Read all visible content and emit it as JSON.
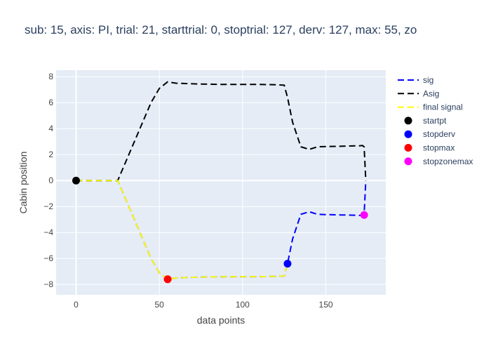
{
  "chart_data": {
    "type": "line",
    "title": "sub: 15, axis: PI, trial: 21, starttrial: 0, stoptrial: 127, derv: 127, max: 55, zo",
    "xlabel": "data points",
    "ylabel": "Cabin position",
    "xlim": [
      -12,
      186
    ],
    "ylim": [
      -8.8,
      8.5
    ],
    "xticks": [
      0,
      50,
      100,
      150
    ],
    "yticks": [
      -8,
      -6,
      -4,
      -2,
      0,
      2,
      4,
      6,
      8
    ],
    "background": "#E5ECF6",
    "grid": true,
    "legend_position": "right",
    "series": [
      {
        "name": "sig",
        "mode": "lines",
        "dash": "dash",
        "color": "#0000FF",
        "x": [
          0,
          5,
          10,
          15,
          20,
          25,
          30,
          35,
          40,
          45,
          50,
          55,
          60,
          70,
          80,
          90,
          100,
          110,
          120,
          125,
          127,
          130,
          135,
          140,
          145,
          150,
          160,
          170,
          172,
          173,
          174
        ],
        "y": [
          0,
          0,
          0,
          0,
          0,
          0,
          -1.5,
          -3.0,
          -4.5,
          -6.0,
          -7.1,
          -7.6,
          -7.5,
          -7.45,
          -7.42,
          -7.4,
          -7.4,
          -7.4,
          -7.38,
          -7.35,
          -6.4,
          -4.5,
          -2.6,
          -2.4,
          -2.6,
          -2.62,
          -2.65,
          -2.68,
          -2.7,
          -2.6,
          0
        ]
      },
      {
        "name": "Asig",
        "mode": "lines",
        "dash": "dash",
        "color": "#000000",
        "x": [
          0,
          5,
          10,
          15,
          20,
          25,
          30,
          35,
          40,
          45,
          50,
          55,
          60,
          70,
          80,
          90,
          100,
          110,
          120,
          125,
          127,
          130,
          135,
          140,
          145,
          150,
          160,
          170,
          172,
          173,
          174
        ],
        "y": [
          0,
          0,
          0,
          0,
          0,
          0,
          1.5,
          3.0,
          4.5,
          6.0,
          7.1,
          7.6,
          7.5,
          7.45,
          7.42,
          7.4,
          7.4,
          7.4,
          7.38,
          7.35,
          6.4,
          4.5,
          2.6,
          2.4,
          2.6,
          2.62,
          2.65,
          2.68,
          2.7,
          2.6,
          0
        ]
      },
      {
        "name": "final signal",
        "mode": "lines",
        "dash": "dash",
        "color": "#FFFF00",
        "x": [
          0,
          5,
          10,
          15,
          20,
          25,
          30,
          35,
          40,
          45,
          50,
          55,
          60,
          70,
          80,
          90,
          100,
          110,
          120,
          125,
          127
        ],
        "y": [
          0,
          0,
          0,
          0,
          0,
          0,
          -1.5,
          -3.0,
          -4.5,
          -6.0,
          -7.1,
          -7.6,
          -7.5,
          -7.45,
          -7.42,
          -7.4,
          -7.4,
          -7.4,
          -7.38,
          -7.35,
          -6.4
        ]
      },
      {
        "name": "startpt",
        "mode": "markers",
        "color": "#000000",
        "x": [
          0
        ],
        "y": [
          0
        ]
      },
      {
        "name": "stopderv",
        "mode": "markers",
        "color": "#0000FF",
        "x": [
          127
        ],
        "y": [
          -6.4
        ]
      },
      {
        "name": "stopmax",
        "mode": "markers",
        "color": "#FF0000",
        "x": [
          55
        ],
        "y": [
          -7.6
        ]
      },
      {
        "name": "stopzonemax",
        "mode": "markers",
        "color": "#FF00FF",
        "x": [
          173
        ],
        "y": [
          -2.65
        ]
      }
    ]
  }
}
